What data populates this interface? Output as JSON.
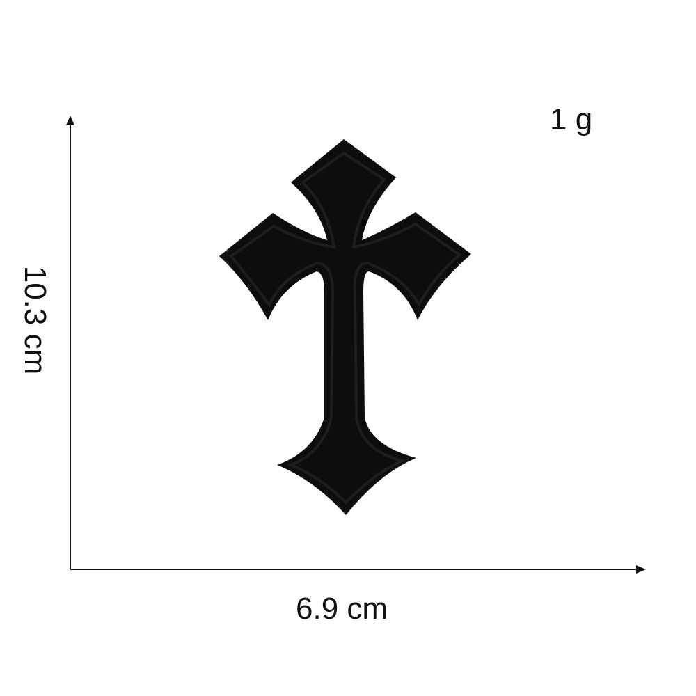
{
  "dimensions": {
    "height_label": "10.3 cm",
    "width_label": "6.9 cm",
    "weight_label": "1 g"
  },
  "product": {
    "shape": "cross",
    "color": "#0d0d0d",
    "border_color": "#1e1e1e"
  }
}
